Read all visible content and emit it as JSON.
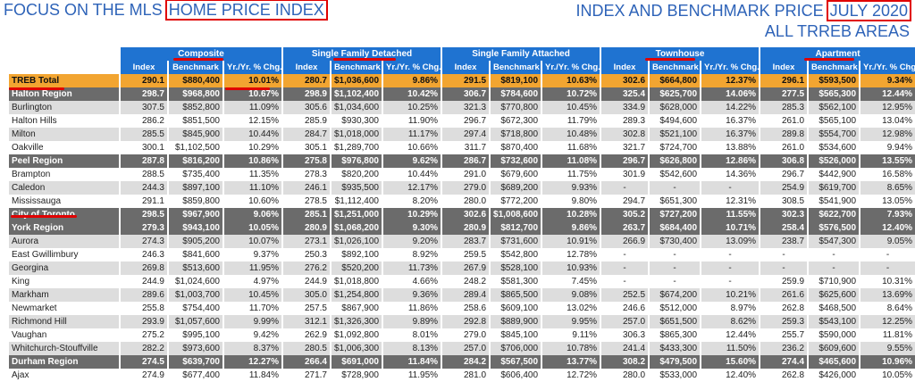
{
  "header": {
    "left_prefix": "FOCUS ON THE MLS ",
    "left_boxed": "HOME PRICE INDEX",
    "right_prefix": "INDEX AND BENCHMARK PRICE ",
    "right_boxed": "JULY 2020",
    "right_line2": "ALL TRREB AREAS"
  },
  "table": {
    "groups": [
      "Composite",
      "Single Family Detached",
      "Single Family Attached",
      "Townhouse",
      "Apartment"
    ],
    "subheaders": [
      "Index",
      "Benchmark",
      "Yr./Yr. % Chg."
    ],
    "rows": [
      {
        "type": "total",
        "name": "TREB Total",
        "v": [
          "290.1",
          "$880,400",
          "10.01%",
          "280.7",
          "$1,036,600",
          "9.86%",
          "291.5",
          "$819,100",
          "10.63%",
          "302.6",
          "$664,800",
          "12.37%",
          "296.1",
          "$593,500",
          "9.34%"
        ]
      },
      {
        "type": "region",
        "name": "Halton Region",
        "v": [
          "298.7",
          "$968,800",
          "10.67%",
          "298.9",
          "$1,102,400",
          "10.42%",
          "306.7",
          "$784,600",
          "10.72%",
          "325.4",
          "$625,700",
          "14.06%",
          "277.5",
          "$565,300",
          "12.44%"
        ]
      },
      {
        "type": "odd",
        "name": "Burlington",
        "v": [
          "307.5",
          "$852,800",
          "11.09%",
          "305.6",
          "$1,034,600",
          "10.25%",
          "321.3",
          "$770,800",
          "10.45%",
          "334.9",
          "$628,000",
          "14.22%",
          "285.3",
          "$562,100",
          "12.95%"
        ]
      },
      {
        "type": "even",
        "name": "Halton Hills",
        "v": [
          "286.2",
          "$851,500",
          "12.15%",
          "285.9",
          "$930,300",
          "11.90%",
          "296.7",
          "$672,300",
          "11.79%",
          "289.3",
          "$494,600",
          "16.37%",
          "261.0",
          "$565,100",
          "13.04%"
        ]
      },
      {
        "type": "odd",
        "name": "Milton",
        "v": [
          "285.5",
          "$845,900",
          "10.44%",
          "284.7",
          "$1,018,000",
          "11.17%",
          "297.4",
          "$718,800",
          "10.48%",
          "302.8",
          "$521,100",
          "16.37%",
          "289.8",
          "$554,700",
          "12.98%"
        ]
      },
      {
        "type": "even",
        "name": "Oakville",
        "v": [
          "300.1",
          "$1,102,500",
          "10.29%",
          "305.1",
          "$1,289,700",
          "10.66%",
          "311.7",
          "$870,400",
          "11.68%",
          "321.7",
          "$724,700",
          "13.88%",
          "261.0",
          "$534,600",
          "9.94%"
        ]
      },
      {
        "type": "region",
        "name": "Peel Region",
        "v": [
          "287.8",
          "$816,200",
          "10.86%",
          "275.8",
          "$976,800",
          "9.62%",
          "286.7",
          "$732,600",
          "11.08%",
          "296.7",
          "$626,800",
          "12.86%",
          "306.8",
          "$526,000",
          "13.55%"
        ]
      },
      {
        "type": "even",
        "name": "Brampton",
        "v": [
          "288.5",
          "$735,400",
          "11.35%",
          "278.3",
          "$820,200",
          "10.44%",
          "291.0",
          "$679,600",
          "11.75%",
          "301.9",
          "$542,600",
          "14.36%",
          "296.7",
          "$442,900",
          "16.58%"
        ]
      },
      {
        "type": "odd",
        "name": "Caledon",
        "v": [
          "244.3",
          "$897,100",
          "11.10%",
          "246.1",
          "$935,500",
          "12.17%",
          "279.0",
          "$689,200",
          "9.93%",
          "-",
          "-",
          "-",
          "254.9",
          "$619,700",
          "8.65%"
        ]
      },
      {
        "type": "even",
        "name": "Mississauga",
        "v": [
          "291.1",
          "$859,800",
          "10.60%",
          "278.5",
          "$1,112,400",
          "8.20%",
          "280.0",
          "$772,200",
          "9.80%",
          "294.7",
          "$651,300",
          "12.31%",
          "308.5",
          "$541,900",
          "13.05%"
        ]
      },
      {
        "type": "region",
        "name": "City of Toronto",
        "v": [
          "298.5",
          "$967,900",
          "9.06%",
          "285.1",
          "$1,251,000",
          "10.29%",
          "302.6",
          "$1,008,600",
          "10.28%",
          "305.2",
          "$727,200",
          "11.55%",
          "302.3",
          "$622,700",
          "7.93%"
        ]
      },
      {
        "type": "region",
        "name": "York Region",
        "v": [
          "279.3",
          "$943,100",
          "10.05%",
          "280.9",
          "$1,068,200",
          "9.30%",
          "280.9",
          "$812,700",
          "9.86%",
          "263.7",
          "$684,400",
          "10.71%",
          "258.4",
          "$576,500",
          "12.40%"
        ]
      },
      {
        "type": "odd",
        "name": "Aurora",
        "v": [
          "274.3",
          "$905,200",
          "10.07%",
          "273.1",
          "$1,026,100",
          "9.20%",
          "283.7",
          "$731,600",
          "10.91%",
          "266.9",
          "$730,400",
          "13.09%",
          "238.7",
          "$547,300",
          "9.05%"
        ]
      },
      {
        "type": "even",
        "name": "East Gwillimbury",
        "v": [
          "246.3",
          "$841,600",
          "9.37%",
          "250.3",
          "$892,100",
          "8.92%",
          "259.5",
          "$542,800",
          "12.78%",
          "-",
          "-",
          "-",
          "-",
          "-",
          "-"
        ]
      },
      {
        "type": "odd",
        "name": "Georgina",
        "v": [
          "269.8",
          "$513,600",
          "11.95%",
          "276.2",
          "$520,200",
          "11.73%",
          "267.9",
          "$528,100",
          "10.93%",
          "-",
          "-",
          "-",
          "-",
          "-",
          "-"
        ]
      },
      {
        "type": "even",
        "name": "King",
        "v": [
          "244.9",
          "$1,024,600",
          "4.97%",
          "244.9",
          "$1,018,800",
          "4.66%",
          "248.2",
          "$581,300",
          "7.45%",
          "-",
          "-",
          "-",
          "259.9",
          "$710,900",
          "10.31%"
        ]
      },
      {
        "type": "odd",
        "name": "Markham",
        "v": [
          "289.6",
          "$1,003,700",
          "10.45%",
          "305.0",
          "$1,254,800",
          "9.36%",
          "289.4",
          "$865,500",
          "9.08%",
          "252.5",
          "$674,200",
          "10.21%",
          "261.6",
          "$625,600",
          "13.69%"
        ]
      },
      {
        "type": "even",
        "name": "Newmarket",
        "v": [
          "255.8",
          "$754,400",
          "11.70%",
          "257.5",
          "$867,900",
          "11.86%",
          "258.6",
          "$609,100",
          "13.02%",
          "246.6",
          "$512,000",
          "8.97%",
          "262.8",
          "$468,500",
          "8.64%"
        ]
      },
      {
        "type": "odd",
        "name": "Richmond Hill",
        "v": [
          "293.9",
          "$1,057,600",
          "9.99%",
          "312.1",
          "$1,326,300",
          "9.89%",
          "292.8",
          "$889,900",
          "9.95%",
          "257.0",
          "$651,500",
          "8.62%",
          "259.3",
          "$543,100",
          "12.25%"
        ]
      },
      {
        "type": "even",
        "name": "Vaughan",
        "v": [
          "275.2",
          "$995,100",
          "9.42%",
          "262.9",
          "$1,092,800",
          "8.01%",
          "279.0",
          "$845,100",
          "9.11%",
          "306.3",
          "$865,300",
          "12.44%",
          "255.7",
          "$590,000",
          "11.81%"
        ]
      },
      {
        "type": "odd",
        "name": "Whitchurch-Stouffville",
        "v": [
          "282.2",
          "$973,600",
          "8.37%",
          "280.5",
          "$1,006,300",
          "8.13%",
          "257.0",
          "$706,000",
          "10.78%",
          "241.4",
          "$433,300",
          "11.50%",
          "236.2",
          "$609,600",
          "9.55%"
        ]
      },
      {
        "type": "region",
        "name": "Durham Region",
        "v": [
          "274.5",
          "$639,700",
          "12.27%",
          "266.4",
          "$691,000",
          "11.84%",
          "284.2",
          "$567,500",
          "13.77%",
          "308.2",
          "$479,500",
          "15.60%",
          "274.4",
          "$465,600",
          "10.96%"
        ]
      },
      {
        "type": "even",
        "name": "Ajax",
        "v": [
          "274.9",
          "$677,400",
          "11.84%",
          "271.7",
          "$728,900",
          "11.95%",
          "281.0",
          "$606,400",
          "12.72%",
          "280.0",
          "$533,000",
          "12.40%",
          "262.8",
          "$426,000",
          "10.05%"
        ]
      }
    ]
  },
  "colors": {
    "header_blue": "#1f73d1",
    "title_blue": "#2e63b8",
    "total_orange": "#f2a531",
    "region_gray": "#6b6b6b",
    "highlight_red": "#e00000"
  }
}
